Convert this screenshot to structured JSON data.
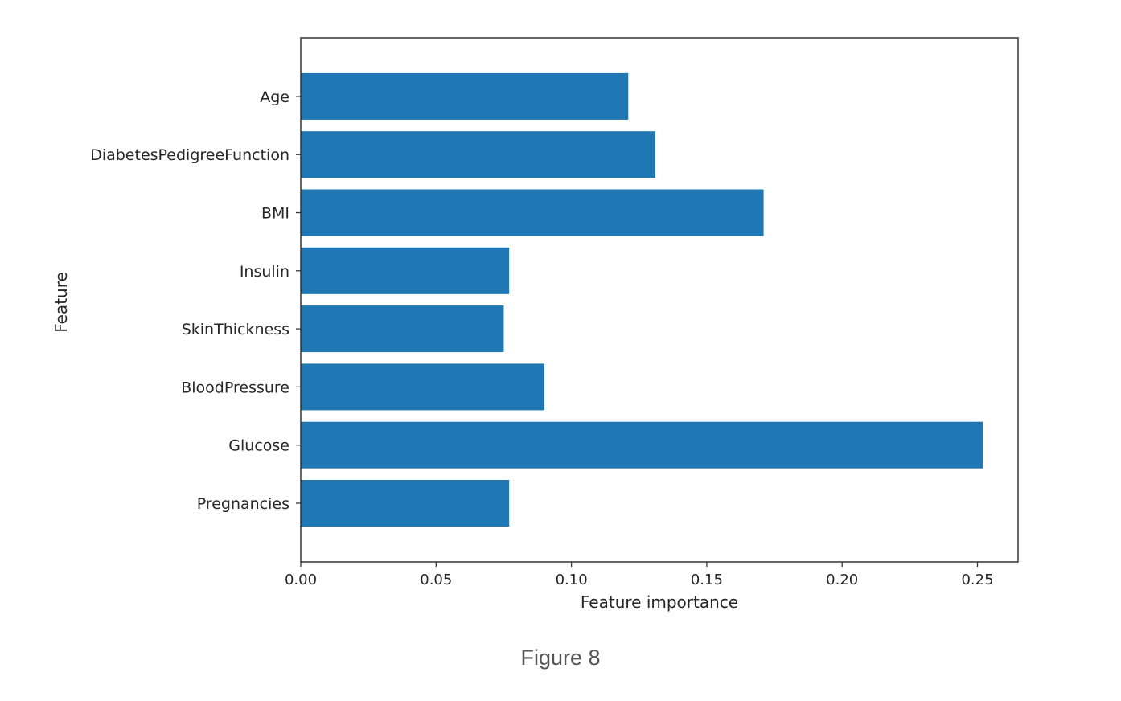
{
  "figure": {
    "caption": "Figure 8"
  },
  "chart_data": {
    "type": "bar",
    "orientation": "horizontal",
    "categories": [
      "Pregnancies",
      "Glucose",
      "BloodPressure",
      "SkinThickness",
      "Insulin",
      "BMI",
      "DiabetesPedigreeFunction",
      "Age"
    ],
    "values": [
      0.077,
      0.252,
      0.09,
      0.075,
      0.077,
      0.171,
      0.131,
      0.121
    ],
    "xlabel": "Feature importance",
    "ylabel": "Feature",
    "xlim": [
      0,
      0.265
    ],
    "xticks": [
      0.0,
      0.05,
      0.1,
      0.15,
      0.2,
      0.25
    ],
    "xtick_labels": [
      "0.00",
      "0.05",
      "0.10",
      "0.15",
      "0.20",
      "0.25"
    ],
    "grid": false,
    "bar_color": "#1f77b4"
  }
}
